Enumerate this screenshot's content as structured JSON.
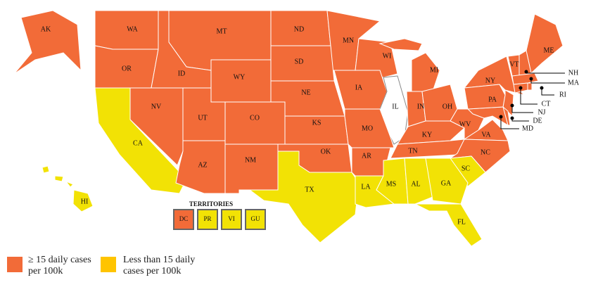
{
  "map": {
    "legend": [
      {
        "label": "≥ 15 daily cases per 100k",
        "color": "#f26b38"
      },
      {
        "label": "Less than 15 daily cases per 100k",
        "color": "#f2e205"
      }
    ],
    "states": [
      {
        "abbr": "AK",
        "group": 0
      },
      {
        "abbr": "WA",
        "group": 0
      },
      {
        "abbr": "MT",
        "group": 0
      },
      {
        "abbr": "ND",
        "group": 0
      },
      {
        "abbr": "MN",
        "group": 0
      },
      {
        "abbr": "WI",
        "group": 0
      },
      {
        "abbr": "MI",
        "group": 0
      },
      {
        "abbr": "NY",
        "group": 0
      },
      {
        "abbr": "VT",
        "group": 0
      },
      {
        "abbr": "ME",
        "group": 0
      },
      {
        "abbr": "NH",
        "group": 0
      },
      {
        "abbr": "MA",
        "group": 0
      },
      {
        "abbr": "RI",
        "group": 0
      },
      {
        "abbr": "CT",
        "group": 0
      },
      {
        "abbr": "NJ",
        "group": 0
      },
      {
        "abbr": "DE",
        "group": 0
      },
      {
        "abbr": "MD",
        "group": 0
      },
      {
        "abbr": "OR",
        "group": 0
      },
      {
        "abbr": "ID",
        "group": 0
      },
      {
        "abbr": "WY",
        "group": 0
      },
      {
        "abbr": "SD",
        "group": 0
      },
      {
        "abbr": "IA",
        "group": 0
      },
      {
        "abbr": "NE",
        "group": 0
      },
      {
        "abbr": "IL",
        "group": null
      },
      {
        "abbr": "IN",
        "group": 0
      },
      {
        "abbr": "OH",
        "group": 0
      },
      {
        "abbr": "PA",
        "group": 0
      },
      {
        "abbr": "NV",
        "group": 0
      },
      {
        "abbr": "UT",
        "group": 0
      },
      {
        "abbr": "CO",
        "group": 0
      },
      {
        "abbr": "KS",
        "group": 0
      },
      {
        "abbr": "MO",
        "group": 0
      },
      {
        "abbr": "WV",
        "group": 0
      },
      {
        "abbr": "KY",
        "group": 0
      },
      {
        "abbr": "VA",
        "group": 0
      },
      {
        "abbr": "CA",
        "group": 1
      },
      {
        "abbr": "TN",
        "group": 0
      },
      {
        "abbr": "NC",
        "group": 0
      },
      {
        "abbr": "AZ",
        "group": 0
      },
      {
        "abbr": "NM",
        "group": 0
      },
      {
        "abbr": "OK",
        "group": 0
      },
      {
        "abbr": "AR",
        "group": 0
      },
      {
        "abbr": "SC",
        "group": 1
      },
      {
        "abbr": "TX",
        "group": 1
      },
      {
        "abbr": "LA",
        "group": 1
      },
      {
        "abbr": "MS",
        "group": 1
      },
      {
        "abbr": "AL",
        "group": 1
      },
      {
        "abbr": "GA",
        "group": 1
      },
      {
        "abbr": "FL",
        "group": 1
      },
      {
        "abbr": "HI",
        "group": 1
      }
    ],
    "territories_title": "TERRITORIES",
    "territories": [
      {
        "abbr": "DC",
        "group": 0
      },
      {
        "abbr": "PR",
        "group": 1
      },
      {
        "abbr": "VI",
        "group": 1
      },
      {
        "abbr": "GU",
        "group": 1
      }
    ]
  }
}
